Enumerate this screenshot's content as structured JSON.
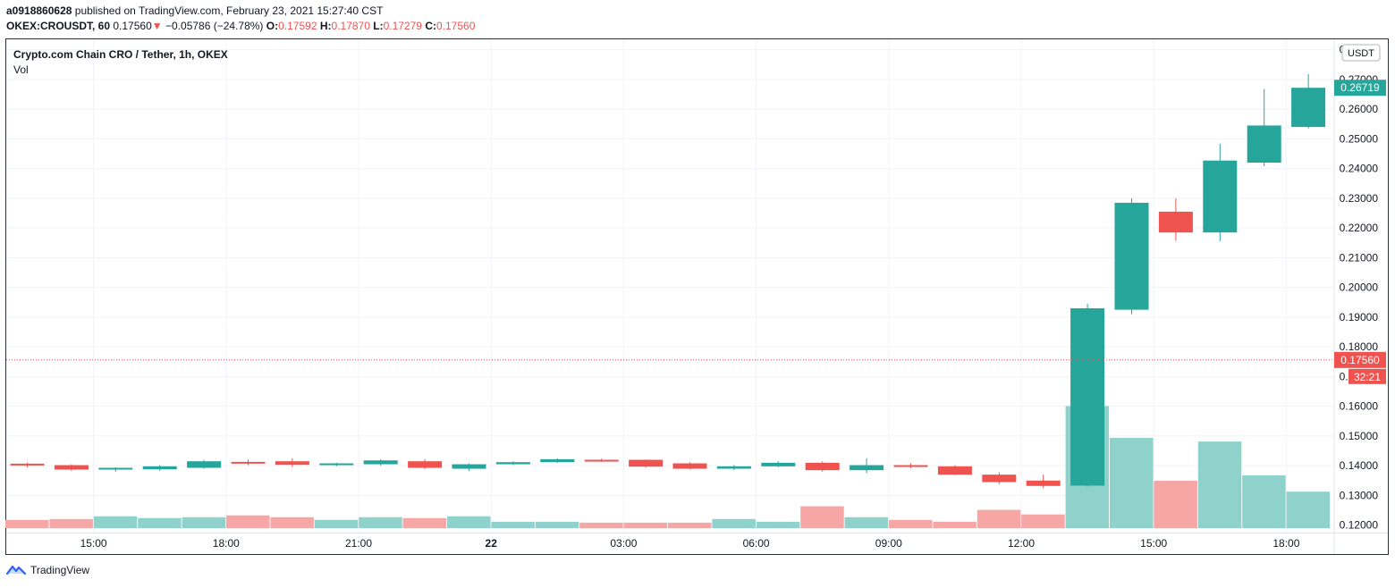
{
  "header": {
    "author": "a0918860628",
    "published_text": "published on TradingView.com, February 23, 2021 15:27:40 CST",
    "symbol": "OKEX:CROUSDT, 60",
    "last": "0.17560",
    "change_arrow": "▼",
    "change": "−0.05786 (−24.78%)",
    "o_label": "O:",
    "o_value": "0.17592",
    "h_label": "H:",
    "h_value": "0.17870",
    "l_label": "L:",
    "l_value": "0.17279",
    "c_label": "C:",
    "c_value": "0.17560"
  },
  "legend": {
    "title": "Crypto.com Chain CRO / Tether, 1h, OKEX",
    "vol_label": "Vol"
  },
  "footer": {
    "brand": "TradingView",
    "logo_icon": "tradingview-logo-icon"
  },
  "colors": {
    "up": "#26a69a",
    "down": "#ef5350",
    "vol_up": "#8fd1cb",
    "vol_down": "#f5a6a5",
    "grid": "#f0f3fa",
    "axis_text": "#131722"
  },
  "chart_data": {
    "type": "candlestick",
    "currency": "USDT",
    "ylim": [
      0.1175,
      0.2835
    ],
    "y_ticks": [
      0.12,
      0.13,
      0.14,
      0.15,
      0.16,
      0.17,
      0.18,
      0.19,
      0.2,
      0.21,
      0.22,
      0.23,
      0.24,
      0.25,
      0.26,
      0.27,
      0.28
    ],
    "y_tick_labels": [
      "0.12000",
      "0.13000",
      "0.14000",
      "0.15000",
      "0.16000",
      "0.17000",
      "0.18000",
      "0.19000",
      "0.20000",
      "0.21000",
      "0.22000",
      "0.23000",
      "0.24000",
      "0.25000",
      "0.26000",
      "0.27000",
      "0.28000"
    ],
    "x_ticks": [
      {
        "index": 1.5,
        "label": "15:00"
      },
      {
        "index": 4.5,
        "label": "18:00"
      },
      {
        "index": 7.5,
        "label": "21:00"
      },
      {
        "index": 10.5,
        "label": "22",
        "bold": true
      },
      {
        "index": 13.5,
        "label": "03:00"
      },
      {
        "index": 16.5,
        "label": "06:00"
      },
      {
        "index": 19.5,
        "label": "09:00"
      },
      {
        "index": 22.5,
        "label": "12:00"
      },
      {
        "index": 25.5,
        "label": "15:00"
      },
      {
        "index": 28.5,
        "label": "18:00"
      }
    ],
    "candles": [
      {
        "o": 0.1407,
        "h": 0.141,
        "l": 0.1395,
        "c": 0.1401,
        "v": 9
      },
      {
        "o": 0.1402,
        "h": 0.1405,
        "l": 0.1382,
        "c": 0.1387,
        "v": 10
      },
      {
        "o": 0.1388,
        "h": 0.1395,
        "l": 0.138,
        "c": 0.1393,
        "v": 13
      },
      {
        "o": 0.1388,
        "h": 0.1402,
        "l": 0.1383,
        "c": 0.1398,
        "v": 11
      },
      {
        "o": 0.1393,
        "h": 0.142,
        "l": 0.139,
        "c": 0.1415,
        "v": 12
      },
      {
        "o": 0.1413,
        "h": 0.142,
        "l": 0.1402,
        "c": 0.141,
        "v": 14
      },
      {
        "o": 0.1415,
        "h": 0.1425,
        "l": 0.1395,
        "c": 0.1403,
        "v": 12
      },
      {
        "o": 0.1402,
        "h": 0.141,
        "l": 0.1398,
        "c": 0.1408,
        "v": 9
      },
      {
        "o": 0.1405,
        "h": 0.1422,
        "l": 0.14,
        "c": 0.1418,
        "v": 12
      },
      {
        "o": 0.1415,
        "h": 0.1422,
        "l": 0.1388,
        "c": 0.1393,
        "v": 11
      },
      {
        "o": 0.139,
        "h": 0.1408,
        "l": 0.1383,
        "c": 0.1405,
        "v": 13
      },
      {
        "o": 0.1405,
        "h": 0.1415,
        "l": 0.1402,
        "c": 0.1412,
        "v": 7
      },
      {
        "o": 0.1412,
        "h": 0.1425,
        "l": 0.141,
        "c": 0.1422,
        "v": 7
      },
      {
        "o": 0.142,
        "h": 0.1424,
        "l": 0.1413,
        "c": 0.1418,
        "v": 6
      },
      {
        "o": 0.142,
        "h": 0.1421,
        "l": 0.1393,
        "c": 0.1397,
        "v": 6
      },
      {
        "o": 0.1408,
        "h": 0.1412,
        "l": 0.1388,
        "c": 0.139,
        "v": 6
      },
      {
        "o": 0.139,
        "h": 0.1402,
        "l": 0.1385,
        "c": 0.1398,
        "v": 10
      },
      {
        "o": 0.1398,
        "h": 0.1415,
        "l": 0.1395,
        "c": 0.141,
        "v": 7
      },
      {
        "o": 0.141,
        "h": 0.1415,
        "l": 0.138,
        "c": 0.1385,
        "v": 24
      },
      {
        "o": 0.1385,
        "h": 0.1425,
        "l": 0.1375,
        "c": 0.1402,
        "v": 12
      },
      {
        "o": 0.1402,
        "h": 0.1408,
        "l": 0.1392,
        "c": 0.1398,
        "v": 9
      },
      {
        "o": 0.1398,
        "h": 0.1402,
        "l": 0.1368,
        "c": 0.137,
        "v": 7
      },
      {
        "o": 0.137,
        "h": 0.1378,
        "l": 0.1338,
        "c": 0.1345,
        "v": 20
      },
      {
        "o": 0.135,
        "h": 0.137,
        "l": 0.1325,
        "c": 0.1332,
        "v": 15
      },
      {
        "o": 0.1333,
        "h": 0.1945,
        "l": 0.133,
        "c": 0.193,
        "v": 134
      },
      {
        "o": 0.1925,
        "h": 0.23,
        "l": 0.191,
        "c": 0.2285,
        "v": 99
      },
      {
        "o": 0.2255,
        "h": 0.23,
        "l": 0.2157,
        "c": 0.2185,
        "v": 52
      },
      {
        "o": 0.2185,
        "h": 0.2483,
        "l": 0.2155,
        "c": 0.2427,
        "v": 95
      },
      {
        "o": 0.242,
        "h": 0.2668,
        "l": 0.2408,
        "c": 0.2545,
        "v": 58
      },
      {
        "o": 0.254,
        "h": 0.2718,
        "l": 0.2535,
        "c": 0.2672,
        "v": 40
      }
    ],
    "price_line": 0.1756,
    "labels": [
      {
        "text": "0.26719",
        "value": 0.26719,
        "kind": "up"
      },
      {
        "text": "0.17560",
        "value": 0.1756,
        "kind": "down"
      },
      {
        "text": "32:21",
        "kind": "countdown"
      }
    ]
  }
}
